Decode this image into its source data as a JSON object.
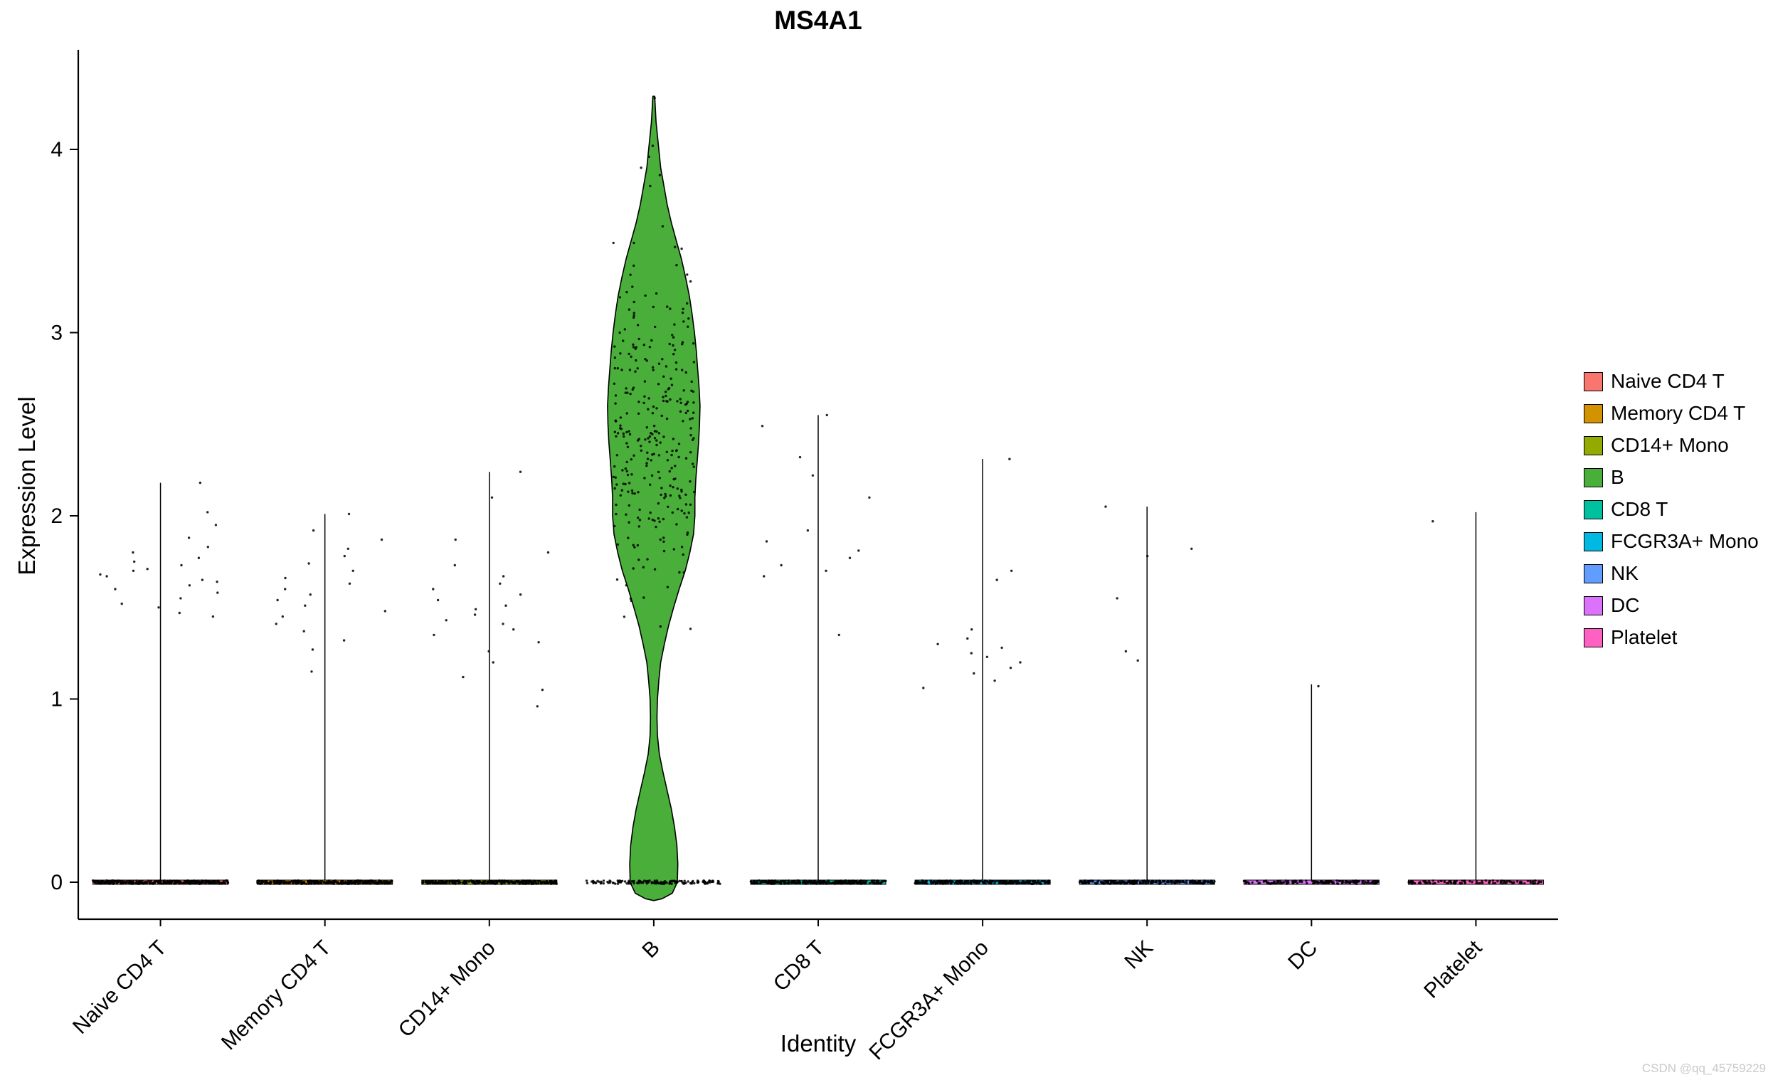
{
  "watermark": {
    "text": "CSDN @qq_45759229"
  },
  "chart_data": {
    "type": "violin",
    "title": "MS4A1",
    "xlabel": "Identity",
    "ylabel": "Expression Level",
    "ylim": [
      -0.12,
      4.45
    ],
    "yticks": [
      0,
      1,
      2,
      3,
      4
    ],
    "legend_position": "right",
    "categories": [
      "Naive CD4 T",
      "Memory CD4 T",
      "CD14+ Mono",
      "B",
      "CD8 T",
      "FCGR3A+ Mono",
      "NK",
      "DC",
      "Platelet"
    ],
    "series": [
      {
        "name": "Naive CD4 T",
        "color": "#F8766D",
        "line_max": 2.18,
        "zero_count": 320,
        "points": [
          2.18,
          2.02,
          1.95,
          1.88,
          1.83,
          1.8,
          1.77,
          1.75,
          1.73,
          1.71,
          1.7,
          1.68,
          1.67,
          1.65,
          1.64,
          1.62,
          1.6,
          1.58,
          1.55,
          1.52,
          1.5,
          1.47,
          1.45
        ]
      },
      {
        "name": "Memory CD4 T",
        "color": "#D39200",
        "line_max": 2.01,
        "zero_count": 300,
        "points": [
          2.01,
          1.92,
          1.87,
          1.82,
          1.78,
          1.74,
          1.7,
          1.66,
          1.63,
          1.6,
          1.57,
          1.54,
          1.51,
          1.48,
          1.45,
          1.41,
          1.37,
          1.32,
          1.27,
          1.15
        ]
      },
      {
        "name": "CD14+ Mono",
        "color": "#93AA00",
        "line_max": 2.24,
        "zero_count": 280,
        "points": [
          2.24,
          2.1,
          1.87,
          1.8,
          1.73,
          1.67,
          1.63,
          1.6,
          1.57,
          1.54,
          1.51,
          1.49,
          1.46,
          1.43,
          1.41,
          1.38,
          1.35,
          1.31,
          1.26,
          1.2,
          1.12,
          1.05,
          0.96
        ]
      },
      {
        "name": "B",
        "color": "#4AAE3A",
        "line_max": 4.29,
        "zero_count": 150,
        "violin_profile": [
          [
            4.29,
            0.02
          ],
          [
            4.15,
            0.05
          ],
          [
            4.0,
            0.11
          ],
          [
            3.9,
            0.15
          ],
          [
            3.8,
            0.22
          ],
          [
            3.7,
            0.29
          ],
          [
            3.6,
            0.38
          ],
          [
            3.5,
            0.49
          ],
          [
            3.4,
            0.6
          ],
          [
            3.3,
            0.69
          ],
          [
            3.2,
            0.77
          ],
          [
            3.1,
            0.83
          ],
          [
            3.0,
            0.88
          ],
          [
            2.9,
            0.92
          ],
          [
            2.8,
            0.95
          ],
          [
            2.7,
            0.98
          ],
          [
            2.6,
            1.0
          ],
          [
            2.5,
            0.99
          ],
          [
            2.4,
            0.97
          ],
          [
            2.3,
            0.94
          ],
          [
            2.2,
            0.91
          ],
          [
            2.1,
            0.89
          ],
          [
            2.0,
            0.89
          ],
          [
            1.9,
            0.86
          ],
          [
            1.8,
            0.78
          ],
          [
            1.7,
            0.68
          ],
          [
            1.6,
            0.55
          ],
          [
            1.5,
            0.43
          ],
          [
            1.4,
            0.32
          ],
          [
            1.3,
            0.23
          ],
          [
            1.2,
            0.15
          ],
          [
            1.1,
            0.11
          ],
          [
            1.0,
            0.08
          ],
          [
            0.9,
            0.07
          ],
          [
            0.8,
            0.08
          ],
          [
            0.7,
            0.12
          ],
          [
            0.6,
            0.2
          ],
          [
            0.5,
            0.29
          ],
          [
            0.4,
            0.38
          ],
          [
            0.3,
            0.45
          ],
          [
            0.2,
            0.5
          ],
          [
            0.1,
            0.52
          ],
          [
            0.0,
            0.51
          ],
          [
            -0.06,
            0.4
          ],
          [
            -0.09,
            0.18
          ],
          [
            -0.1,
            0.0
          ]
        ],
        "cluster": {
          "count": 300,
          "mean": 2.45,
          "sd": 0.43,
          "min": 1.38,
          "max": 3.75
        },
        "outliers": [
          4.28,
          4.02,
          3.96,
          3.9,
          3.86,
          3.8
        ]
      },
      {
        "name": "CD8 T",
        "color": "#00C19F",
        "line_max": 2.55,
        "zero_count": 300,
        "points": [
          2.55,
          2.49,
          2.32,
          2.22,
          2.1,
          1.92,
          1.86,
          1.81,
          1.77,
          1.73,
          1.7,
          1.67,
          1.35
        ]
      },
      {
        "name": "FCGR3A+ Mono",
        "color": "#00B9E3",
        "line_max": 2.31,
        "zero_count": 260,
        "points": [
          2.31,
          1.7,
          1.65,
          1.38,
          1.33,
          1.3,
          1.28,
          1.25,
          1.23,
          1.2,
          1.17,
          1.14,
          1.1,
          1.06
        ]
      },
      {
        "name": "NK",
        "color": "#619CFF",
        "line_max": 2.05,
        "zero_count": 220,
        "points": [
          2.05,
          1.82,
          1.78,
          1.55,
          1.26,
          1.21
        ]
      },
      {
        "name": "DC",
        "color": "#DB72FB",
        "line_max": 1.08,
        "zero_count": 150,
        "points": [
          1.07
        ]
      },
      {
        "name": "Platelet",
        "color": "#FF61C3",
        "line_max": 2.02,
        "zero_count": 110,
        "points": [
          1.97
        ]
      }
    ]
  }
}
